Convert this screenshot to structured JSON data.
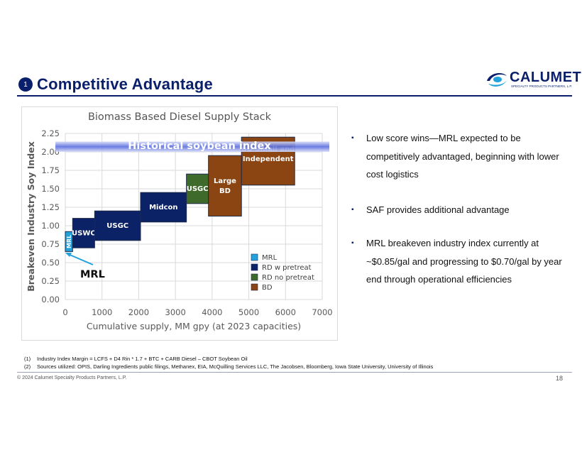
{
  "header": {
    "badge": "1",
    "title": "Competitive Advantage",
    "logo_name": "CALUMET",
    "logo_sub": "SPECIALTY PRODUCTS PARTNERS, L.P.",
    "accent": "#0a1f6b"
  },
  "chart_data": {
    "type": "bar",
    "subtype": "supply-stack",
    "title": "Biomass Based Diesel Supply Stack",
    "xlabel": "Cumulative supply, MM gpy (at 2023 capacities)",
    "ylabel": "Breakeven Industry Soy Index",
    "xlim": [
      0,
      7000
    ],
    "ylim": [
      0,
      2.25
    ],
    "xticks": [
      "0",
      "1000",
      "2000",
      "3000",
      "4000",
      "5000",
      "6000",
      "7000"
    ],
    "yticks": [
      "0.00",
      "0.25",
      "0.50",
      "0.75",
      "1.00",
      "1.25",
      "1.50",
      "1.75",
      "2.00",
      "2.25"
    ],
    "grid": true,
    "legend_position": "bottom-right",
    "legend": [
      {
        "label": "MRL",
        "color": "#21a2dc"
      },
      {
        "label": "RD w pretreat",
        "color": "#0c2266"
      },
      {
        "label": "RD no pretreat",
        "color": "#3e6b2c"
      },
      {
        "label": "BD",
        "color": "#8b4513"
      }
    ],
    "blocks": [
      {
        "label": "MRL",
        "category": "MRL",
        "x0": 0,
        "x1": 200,
        "y0": 0.65,
        "y1": 0.92
      },
      {
        "label": "USWC",
        "category": "RD w pretreat",
        "x0": 200,
        "x1": 800,
        "y0": 0.7,
        "y1": 1.1
      },
      {
        "label": "USGC",
        "category": "RD w pretreat",
        "x0": 800,
        "x1": 2050,
        "y0": 0.8,
        "y1": 1.2
      },
      {
        "label": "Midcon",
        "category": "RD w pretreat",
        "x0": 2050,
        "x1": 3300,
        "y0": 1.05,
        "y1": 1.45
      },
      {
        "label": "USGC",
        "category": "RD no pretreat",
        "x0": 3300,
        "x1": 3900,
        "y0": 1.3,
        "y1": 1.7
      },
      {
        "label": "Large BD",
        "category": "BD",
        "x0": 3900,
        "x1": 4800,
        "y0": 1.13,
        "y1": 1.95
      },
      {
        "label": "BD Small and Independent",
        "category": "BD",
        "x0": 4800,
        "x1": 6250,
        "y0": 1.55,
        "y1": 2.2
      }
    ],
    "index_band": {
      "label": "Historical soybean index",
      "y0": 2.0,
      "y1": 2.14
    },
    "callout": "MRL"
  },
  "bullets": [
    "Low score wins—MRL expected to be competitively advantaged, beginning with lower cost logistics",
    "SAF provides additional advantage",
    "MRL breakeven industry index currently at ~$0.85/gal and progressing to $0.70/gal by year end through operational efficiencies"
  ],
  "footnotes": [
    {
      "num": "(1)",
      "text": "Industry Index Margin = LCFS + D4 Rin * 1.7 + BTC + CARB Diesel – CBOT Soybean Oil"
    },
    {
      "num": "(2)",
      "text": "Sources utilized:  OPIS, Darling Ingredients public filings, Methanex, EIA, McQuilling Services LLC, The Jacobsen, Bloomberg, Iowa State University, University of Illinois"
    }
  ],
  "footer": {
    "copyright": "© 2024 Calumet Specialty Products Partners, L.P.",
    "page": "18"
  }
}
